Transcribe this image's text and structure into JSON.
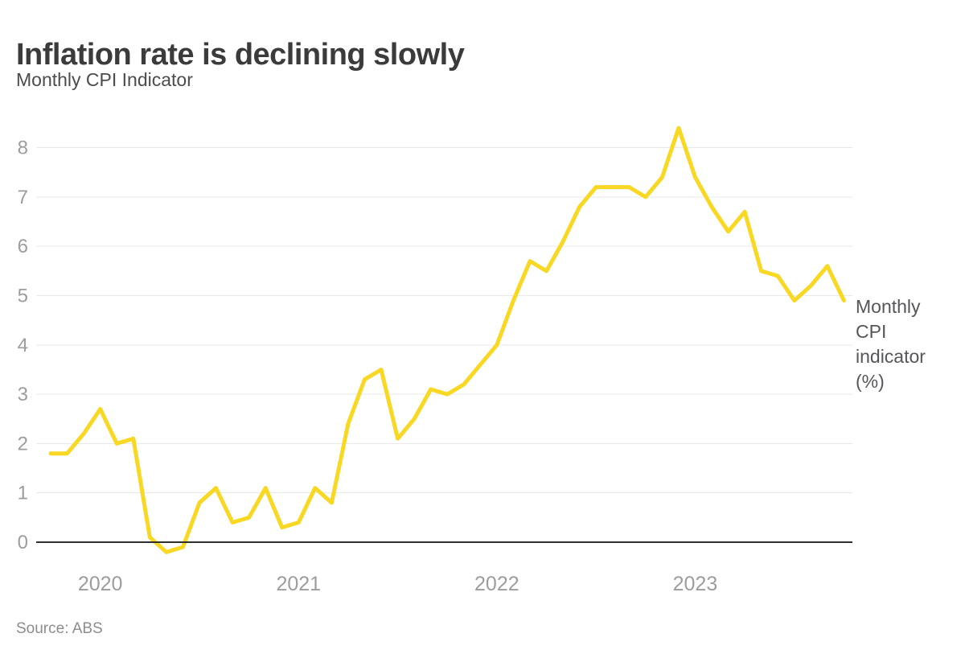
{
  "header": {
    "title": "Inflation rate is declining slowly",
    "subtitle": "Monthly CPI Indicator"
  },
  "series_label": "Monthly CPI indicator (%)",
  "footer": {
    "source": "Source: ABS"
  },
  "colors": {
    "line": "#f8d823",
    "zero_axis": "#2f2f2f",
    "gridline": "#e9e9e9",
    "tick_text": "#9d9d9d"
  },
  "chart_data": {
    "type": "line",
    "title": "Inflation rate is declining slowly",
    "subtitle": "Monthly CPI Indicator",
    "series_name": "Monthly CPI indicator (%)",
    "source": "Source: ABS",
    "grid": "horizontal",
    "legend_position": "right-of-line-end",
    "ylim": [
      -0.3,
      8.6
    ],
    "y_ticks": [
      0,
      1,
      2,
      3,
      4,
      5,
      6,
      7,
      8
    ],
    "x_ticks": [
      {
        "label": "2020",
        "month_index": 3
      },
      {
        "label": "2021",
        "month_index": 15
      },
      {
        "label": "2022",
        "month_index": 27
      },
      {
        "label": "2023",
        "month_index": 39
      }
    ],
    "x": [
      "Oct 2019",
      "Nov 2019",
      "Dec 2019",
      "Jan 2020",
      "Feb 2020",
      "Mar 2020",
      "Apr 2020",
      "May 2020",
      "Jun 2020",
      "Jul 2020",
      "Aug 2020",
      "Sep 2020",
      "Oct 2020",
      "Nov 2020",
      "Dec 2020",
      "Jan 2021",
      "Feb 2021",
      "Mar 2021",
      "Apr 2021",
      "May 2021",
      "Jun 2021",
      "Jul 2021",
      "Aug 2021",
      "Sep 2021",
      "Oct 2021",
      "Nov 2021",
      "Dec 2021",
      "Jan 2022",
      "Feb 2022",
      "Mar 2022",
      "Apr 2022",
      "May 2022",
      "Jun 2022",
      "Jul 2022",
      "Aug 2022",
      "Sep 2022",
      "Oct 2022",
      "Nov 2022",
      "Dec 2022",
      "Jan 2023",
      "Feb 2023",
      "Mar 2023",
      "Apr 2023",
      "May 2023",
      "Jun 2023",
      "Jul 2023",
      "Aug 2023",
      "Sep 2023",
      "Oct 2023"
    ],
    "values": [
      1.8,
      1.8,
      2.2,
      2.7,
      2.0,
      2.1,
      0.1,
      -0.2,
      -0.1,
      0.8,
      1.1,
      0.4,
      0.5,
      1.1,
      0.3,
      0.4,
      1.1,
      0.8,
      2.4,
      3.3,
      3.5,
      2.1,
      2.5,
      3.1,
      3.0,
      3.2,
      3.6,
      4.0,
      4.9,
      5.7,
      5.5,
      6.1,
      6.8,
      7.2,
      7.2,
      7.2,
      7.0,
      7.4,
      8.4,
      7.4,
      6.8,
      6.3,
      6.7,
      5.5,
      5.4,
      4.9,
      5.2,
      5.6,
      4.9
    ]
  }
}
